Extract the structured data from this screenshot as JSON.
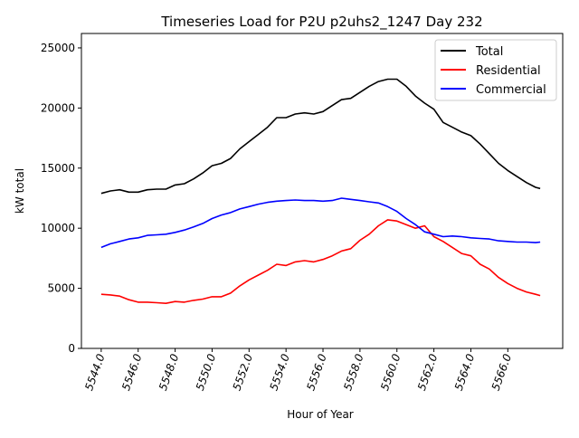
{
  "chart_data": {
    "type": "line",
    "title": "Timeseries Load for P2U p2uhs2_1247  Day 232",
    "xlabel": "Hour of Year",
    "ylabel": "kW total",
    "xlim": [
      5542.93,
      5568.97
    ],
    "ylim": [
      0,
      26200
    ],
    "xticks": [
      5544,
      5546,
      5548,
      5550,
      5552,
      5554,
      5556,
      5558,
      5560,
      5562,
      5564,
      5566
    ],
    "xtick_labels": [
      "5544.0",
      "5546.0",
      "5548.0",
      "5550.0",
      "5552.0",
      "5554.0",
      "5556.0",
      "5558.0",
      "5560.0",
      "5562.0",
      "5564.0",
      "5566.0"
    ],
    "yticks": [
      0,
      5000,
      10000,
      15000,
      20000,
      25000
    ],
    "ytick_labels": [
      "0",
      "5000",
      "10000",
      "15000",
      "20000",
      "25000"
    ],
    "grid": false,
    "legend_position": "top-right",
    "x": [
      5544,
      5544.5,
      5545,
      5545.5,
      5546,
      5546.5,
      5547,
      5547.5,
      5548,
      5548.5,
      5549,
      5549.5,
      5550,
      5550.5,
      5551,
      5551.5,
      5552,
      5552.5,
      5553,
      5553.5,
      5554,
      5554.5,
      5555,
      5555.5,
      5556,
      5556.5,
      5557,
      5557.5,
      5558,
      5558.5,
      5559,
      5559.5,
      5560,
      5560.5,
      5561,
      5561.5,
      5562,
      5562.5,
      5563,
      5563.5,
      5564,
      5564.5,
      5565,
      5565.5,
      5566,
      5566.5,
      5567,
      5567.5,
      5567.75
    ],
    "series": [
      {
        "name": "Total",
        "color": "#000000",
        "values": [
          12900,
          13100,
          13200,
          13000,
          13000,
          13200,
          13250,
          13250,
          13600,
          13700,
          14100,
          14600,
          15200,
          15400,
          15800,
          16600,
          17200,
          17800,
          18400,
          19200,
          19200,
          19500,
          19600,
          19500,
          19700,
          20200,
          20700,
          20800,
          21300,
          21800,
          22200,
          22400,
          22400,
          21800,
          21000,
          20400,
          19900,
          18800,
          18400,
          18000,
          17700,
          17000,
          16200,
          15400,
          14800,
          14300,
          13800,
          13400,
          13300
        ]
      },
      {
        "name": "Residential",
        "color": "#ff0000",
        "values": [
          4500,
          4450,
          4350,
          4050,
          3850,
          3850,
          3800,
          3750,
          3900,
          3850,
          4000,
          4100,
          4300,
          4300,
          4600,
          5200,
          5700,
          6100,
          6500,
          7000,
          6900,
          7200,
          7300,
          7200,
          7400,
          7700,
          8100,
          8300,
          9000,
          9500,
          10200,
          10700,
          10600,
          10300,
          10000,
          10200,
          9300,
          8900,
          8400,
          7900,
          7700,
          7000,
          6600,
          5900,
          5400,
          5000,
          4700,
          4500,
          4400
        ]
      },
      {
        "name": "Commercial",
        "color": "#0000ff",
        "values": [
          8400,
          8700,
          8900,
          9100,
          9200,
          9400,
          9450,
          9500,
          9650,
          9850,
          10100,
          10400,
          10800,
          11100,
          11300,
          11600,
          11800,
          12000,
          12150,
          12250,
          12300,
          12350,
          12300,
          12300,
          12250,
          12300,
          12500,
          12400,
          12300,
          12200,
          12100,
          11800,
          11400,
          10800,
          10300,
          9700,
          9500,
          9300,
          9350,
          9300,
          9200,
          9150,
          9100,
          8950,
          8900,
          8850,
          8850,
          8800,
          8850
        ]
      }
    ]
  }
}
